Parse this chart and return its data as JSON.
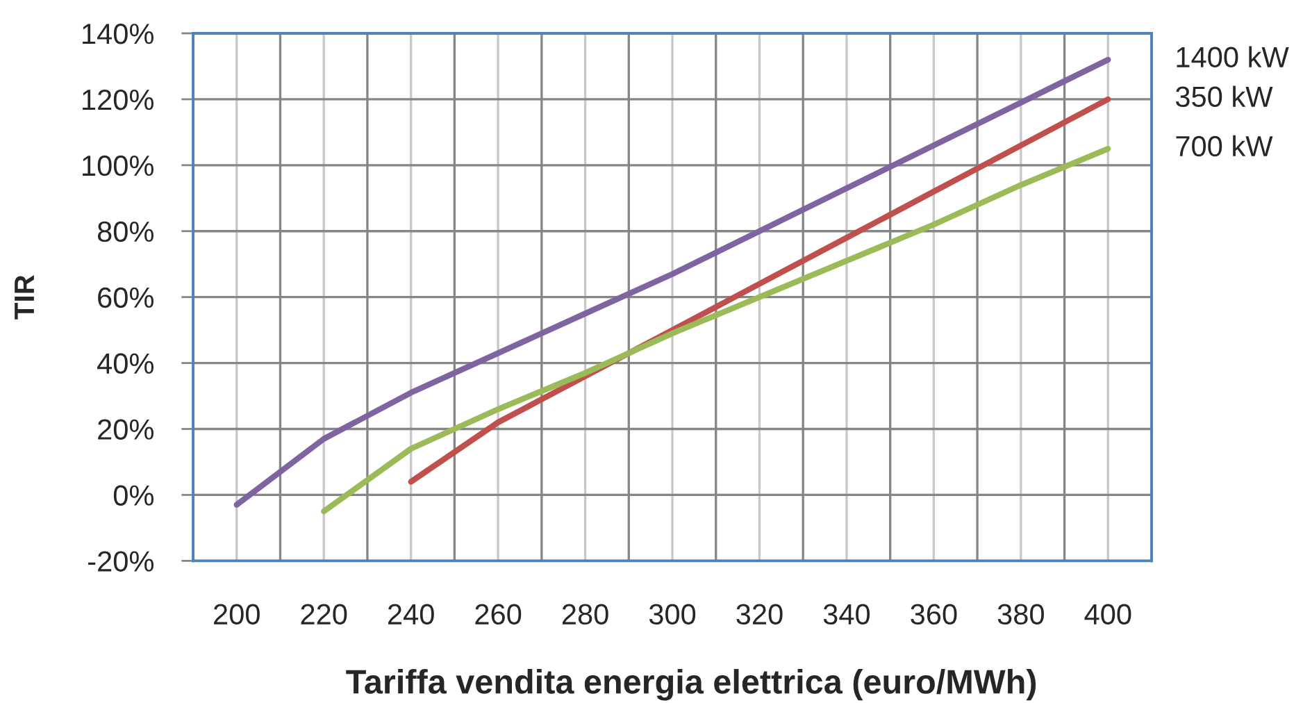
{
  "chart_data": {
    "type": "line",
    "xlabel": "Tariffa vendita energia elettrica (euro/MWh)",
    "ylabel": "TIR",
    "xlim": [
      190,
      410
    ],
    "xticks": [
      200,
      {
        "value": 210,
        "label": null
      },
      220,
      {
        "value": 230,
        "label": null
      },
      240,
      {
        "value": 250,
        "label": null
      },
      260,
      {
        "value": 270,
        "label": null
      },
      280,
      {
        "value": 290,
        "label": null
      },
      300,
      {
        "value": 310,
        "label": null
      },
      320,
      {
        "value": 330,
        "label": null
      },
      340,
      {
        "value": 350,
        "label": null
      },
      360,
      {
        "value": 370,
        "label": null
      },
      380,
      {
        "value": 390,
        "label": null
      },
      400
    ],
    "ylim": [
      -20,
      140
    ],
    "yticks": [
      {
        "value": -20,
        "label": "-20%"
      },
      {
        "value": 0,
        "label": "0%"
      },
      {
        "value": 20,
        "label": "20%"
      },
      {
        "value": 40,
        "label": "40%"
      },
      {
        "value": 60,
        "label": "60%"
      },
      {
        "value": 80,
        "label": "80%"
      },
      {
        "value": 100,
        "label": "100%"
      },
      {
        "value": 120,
        "label": "120%"
      },
      {
        "value": 140,
        "label": "140%"
      }
    ],
    "grid": true,
    "series": [
      {
        "name": "350 kW",
        "color": "#c0504d",
        "x": [
          240,
          260,
          280,
          300,
          320,
          340,
          360,
          380,
          400
        ],
        "values": [
          4,
          22,
          36,
          50,
          64,
          78,
          92,
          106,
          120
        ]
      },
      {
        "name": "700 kW",
        "color": "#9bbb59",
        "x": [
          220,
          240,
          260,
          280,
          300,
          320,
          340,
          360,
          380,
          400
        ],
        "values": [
          -5,
          14,
          26,
          37,
          49,
          60,
          71,
          82,
          94,
          105
        ]
      },
      {
        "name": "1400 kW",
        "color": "#8064a2",
        "x": [
          200,
          220,
          240,
          260,
          280,
          300,
          320,
          340,
          360,
          380,
          400
        ],
        "values": [
          -3,
          17,
          31,
          43,
          55,
          67,
          80,
          93,
          106,
          119,
          132
        ]
      }
    ]
  }
}
